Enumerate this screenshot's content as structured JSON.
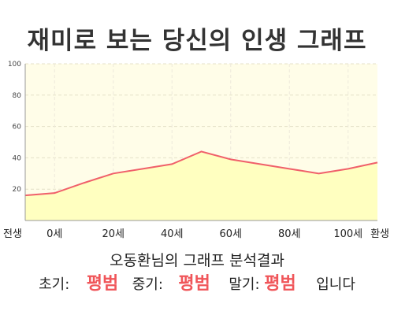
{
  "title": "재미로 보는 당신의 인생 그래프",
  "subtitle": "오동환님의 그래프 분석결과",
  "result": {
    "early_label": "초기:",
    "early_value": "평범",
    "middle_label": "중기:",
    "middle_value": "평범",
    "late_label": "말기:",
    "late_value": "평범",
    "suffix": "입니다"
  },
  "colors": {
    "line": "#f0606a",
    "fill": "#ffffc0",
    "plot_background": "#fffde8",
    "result_highlight": "#f0565a"
  },
  "chart_data": {
    "type": "area",
    "title": "재미로 보는 당신의 인생 그래프",
    "xlabel": "",
    "ylabel": "",
    "ylim": [
      0,
      100
    ],
    "yticks": [
      20,
      40,
      60,
      80,
      100
    ],
    "grid": true,
    "x_tick_labels": [
      "전생",
      "0세",
      "20세",
      "40세",
      "60세",
      "80세",
      "100세",
      "환생"
    ],
    "series": [
      {
        "x": [
          "전생",
          "0세",
          "10세",
          "20세",
          "30세",
          "40세",
          "50세",
          "60세",
          "70세",
          "80세",
          "90세",
          "100세",
          "환생"
        ],
        "values": [
          16,
          17.5,
          24,
          30,
          33,
          36,
          44,
          39,
          36,
          33,
          30,
          33,
          37
        ]
      }
    ]
  }
}
